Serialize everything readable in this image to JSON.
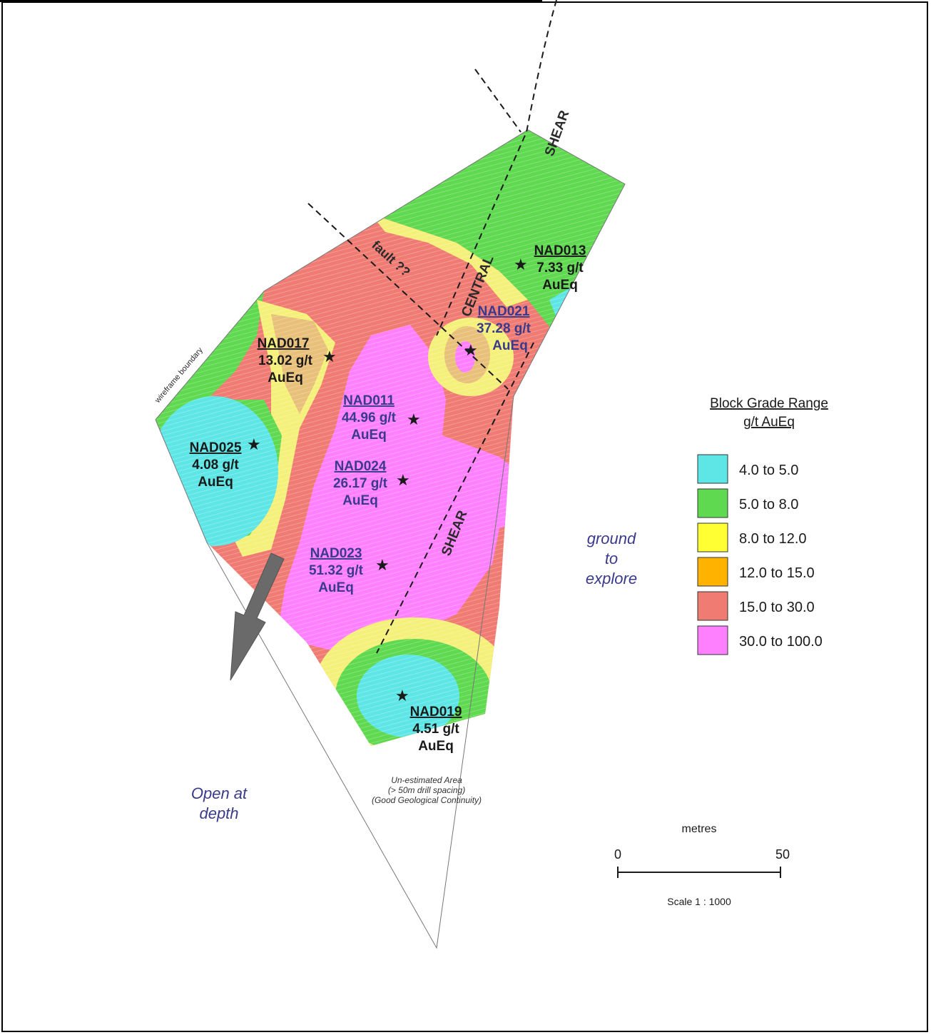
{
  "figure_caption": "",
  "holes": [
    {
      "id": "NAD013",
      "grade": "7.33 g/t",
      "unit": "AuEq",
      "style": "dark"
    },
    {
      "id": "NAD021",
      "grade": "37.28 g/t",
      "unit": "AuEq",
      "style": "blue"
    },
    {
      "id": "NAD017",
      "grade": "13.02 g/t",
      "unit": "AuEq",
      "style": "dark"
    },
    {
      "id": "NAD011",
      "grade": "44.96 g/t",
      "unit": "AuEq",
      "style": "blue"
    },
    {
      "id": "NAD025",
      "grade": "4.08 g/t",
      "unit": "AuEq",
      "style": "dark"
    },
    {
      "id": "NAD024",
      "grade": "26.17 g/t",
      "unit": "AuEq",
      "style": "blue"
    },
    {
      "id": "NAD023",
      "grade": "51.32 g/t",
      "unit": "AuEq",
      "style": "blue"
    },
    {
      "id": "NAD019",
      "grade": "4.51 g/t",
      "unit": "AuEq",
      "style": "dark"
    }
  ],
  "structures": {
    "shear_north": "SHEAR",
    "shear_south": "SHEAR",
    "central": "CENTRAL",
    "fault": "fault ??",
    "wireframe": "wireframe boundary"
  },
  "annotations": {
    "ground_to_explore": [
      "ground",
      "to",
      "explore"
    ],
    "open_at_depth": [
      "Open at",
      "depth"
    ],
    "unestimated": [
      "Un-estimated Area",
      "(> 50m drill spacing)",
      "(Good Geological Continuity)"
    ]
  },
  "legend": {
    "title": "Block Grade Range",
    "subtitle": "g/t AuEq",
    "items": [
      {
        "label": "4.0 to 5.0",
        "color": "#5ee6e6"
      },
      {
        "label": "5.0 to 8.0",
        "color": "#5fd94f"
      },
      {
        "label": "8.0 to 12.0",
        "color": "#ffff33"
      },
      {
        "label": "12.0 to 15.0",
        "color": "#ffb300"
      },
      {
        "label": "15.0 to 30.0",
        "color": "#ef7b73"
      },
      {
        "label": "30.0 to 100.0",
        "color": "#ff80ff"
      }
    ]
  },
  "scale": {
    "unit": "metres",
    "start": "0",
    "end": "50",
    "ratio": "Scale 1 : 1000"
  },
  "colors": {
    "blue_text": "#3a3a8c",
    "dark_text": "#1a1a1a",
    "cyan": "#5ee6e6",
    "green": "#5fd94f",
    "yellow": "#f5f07a",
    "orange": "#e8c07a",
    "red": "#ef7b73",
    "magenta": "#ff80ff"
  }
}
